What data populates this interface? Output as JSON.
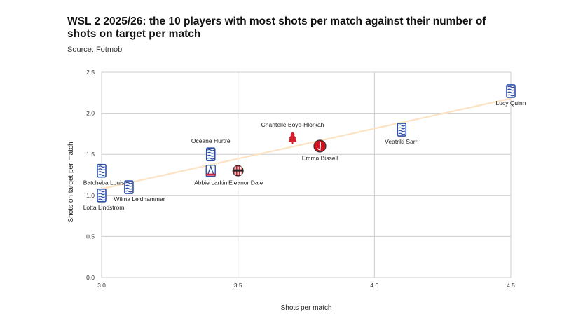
{
  "chart_data": {
    "type": "scatter",
    "title": "WSL 2 2025/26: the 10 players with most shots per match against their number of shots on target per match",
    "subtitle": "Source: Fotmob",
    "xlabel": "Shots per match",
    "ylabel": "Shots on target per match",
    "xlim": [
      3.0,
      4.5
    ],
    "ylim": [
      0.0,
      2.5
    ],
    "xticks": [
      "3.0",
      "3.5",
      "4.0",
      "4.5"
    ],
    "yticks": [
      "0.0",
      "0.5",
      "1.0",
      "1.5",
      "2.0",
      "2.5"
    ],
    "grid": true,
    "trendline": {
      "x": [
        3.0,
        4.5
      ],
      "y": [
        1.08,
        2.18
      ],
      "color": "#fbe3c4"
    },
    "points": [
      {
        "name": "Lucy Quinn",
        "x": 4.5,
        "y": 2.27,
        "club": "birmingham",
        "label_pos": "below"
      },
      {
        "name": "Veatriki Sarri",
        "x": 4.1,
        "y": 1.8,
        "club": "birmingham",
        "label_pos": "below"
      },
      {
        "name": "Chantelle Boye-Hlorkah",
        "x": 3.7,
        "y": 1.7,
        "club": "nottingham",
        "label_pos": "above"
      },
      {
        "name": "Emma Bissell",
        "x": 3.8,
        "y": 1.6,
        "club": "charlton",
        "label_pos": "below"
      },
      {
        "name": "Océane Hurtré",
        "x": 3.4,
        "y": 1.5,
        "club": "birmingham",
        "label_pos": "above"
      },
      {
        "name": "Abbie Larkin",
        "x": 3.4,
        "y": 1.3,
        "club": "palace",
        "label_pos": "below"
      },
      {
        "name": "Eleanor Dale",
        "x": 3.5,
        "y": 1.3,
        "club": "sunderland",
        "label_pos": "below"
      },
      {
        "name": "Batcheba Louis",
        "x": 3.0,
        "y": 1.3,
        "club": "birmingham",
        "label_pos": "below"
      },
      {
        "name": "Wilma Leidhammar",
        "x": 3.1,
        "y": 1.1,
        "club": "birmingham",
        "label_pos": "below"
      },
      {
        "name": "Lotta Lindstrom",
        "x": 3.0,
        "y": 1.0,
        "club": "birmingham",
        "label_pos": "below"
      }
    ]
  },
  "colors": {
    "grid": "#cccccc",
    "trendline": "#fbe3c4",
    "birmingham_blue": "#2c50a8",
    "palace_blue": "#2b4ea2",
    "palace_red": "#d0233a",
    "nottingham_red": "#d3202e",
    "charlton_red": "#d4101e",
    "sunderland_red": "#c8222e"
  }
}
